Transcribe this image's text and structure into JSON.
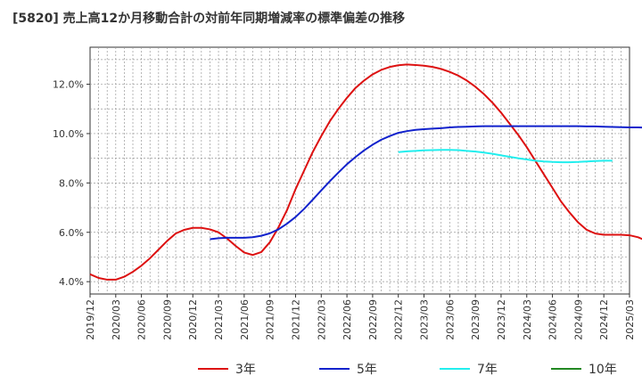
{
  "chart_data": {
    "type": "line",
    "title": "[5820]  売上高12か月移動合計の対前年同期増減率の標準偏差の推移",
    "xlabel": "",
    "ylabel": "",
    "ylim": [
      3.5,
      13.5
    ],
    "y_ticks": [
      "4.0%",
      "6.0%",
      "8.0%",
      "10.0%",
      "12.0%"
    ],
    "y_tick_values": [
      4,
      6,
      8,
      10,
      12
    ],
    "x_ticks": [
      "2019/12",
      "2020/03",
      "2020/06",
      "2020/09",
      "2020/12",
      "2021/03",
      "2021/06",
      "2021/09",
      "2021/12",
      "2022/03",
      "2022/06",
      "2022/09",
      "2022/12",
      "2023/03",
      "2023/06",
      "2023/09",
      "2023/12",
      "2024/03",
      "2024/06",
      "2024/09",
      "2024/12",
      "2025/03"
    ],
    "grid": true,
    "legend_position": "bottom",
    "series": [
      {
        "name": "3年",
        "color": "#dd1111",
        "start": "2019/12",
        "values": [
          4.3,
          4.15,
          4.08,
          4.08,
          4.2,
          4.4,
          4.65,
          4.95,
          5.3,
          5.65,
          5.95,
          6.1,
          6.18,
          6.18,
          6.12,
          6.0,
          5.75,
          5.45,
          5.18,
          5.08,
          5.2,
          5.6,
          6.2,
          6.9,
          7.75,
          8.5,
          9.25,
          9.9,
          10.5,
          11.0,
          11.45,
          11.85,
          12.15,
          12.4,
          12.58,
          12.7,
          12.77,
          12.8,
          12.78,
          12.75,
          12.7,
          12.62,
          12.5,
          12.35,
          12.15,
          11.9,
          11.6,
          11.25,
          10.85,
          10.4,
          9.95,
          9.45,
          8.9,
          8.35,
          7.8,
          7.25,
          6.8,
          6.4,
          6.1,
          5.95,
          5.9,
          5.9,
          5.9,
          5.88,
          5.8,
          5.65
        ]
      },
      {
        "name": "5年",
        "color": "#1122cc",
        "start": "2021/02",
        "values": [
          5.72,
          5.76,
          5.78,
          5.78,
          5.78,
          5.8,
          5.86,
          5.96,
          6.12,
          6.35,
          6.62,
          6.95,
          7.32,
          7.7,
          8.07,
          8.42,
          8.76,
          9.05,
          9.32,
          9.55,
          9.75,
          9.9,
          10.03,
          10.1,
          10.15,
          10.18,
          10.2,
          10.22,
          10.25,
          10.27,
          10.28,
          10.29,
          10.3,
          10.3,
          10.3,
          10.3,
          10.3,
          10.3,
          10.3,
          10.3,
          10.3,
          10.3,
          10.3,
          10.3,
          10.29,
          10.29,
          10.28,
          10.27,
          10.26,
          10.25,
          10.25,
          10.24,
          10.22,
          10.18,
          10.14
        ]
      },
      {
        "name": "7年",
        "color": "#22eeee",
        "start": "2022/12",
        "values": [
          9.25,
          9.28,
          9.3,
          9.32,
          9.33,
          9.34,
          9.34,
          9.33,
          9.3,
          9.27,
          9.23,
          9.18,
          9.12,
          9.06,
          9.0,
          8.95,
          8.9,
          8.87,
          8.85,
          8.84,
          8.84,
          8.85,
          8.87,
          8.89,
          8.9,
          8.9
        ]
      },
      {
        "name": "10年",
        "color": "#228822",
        "start": "",
        "values": []
      }
    ]
  }
}
